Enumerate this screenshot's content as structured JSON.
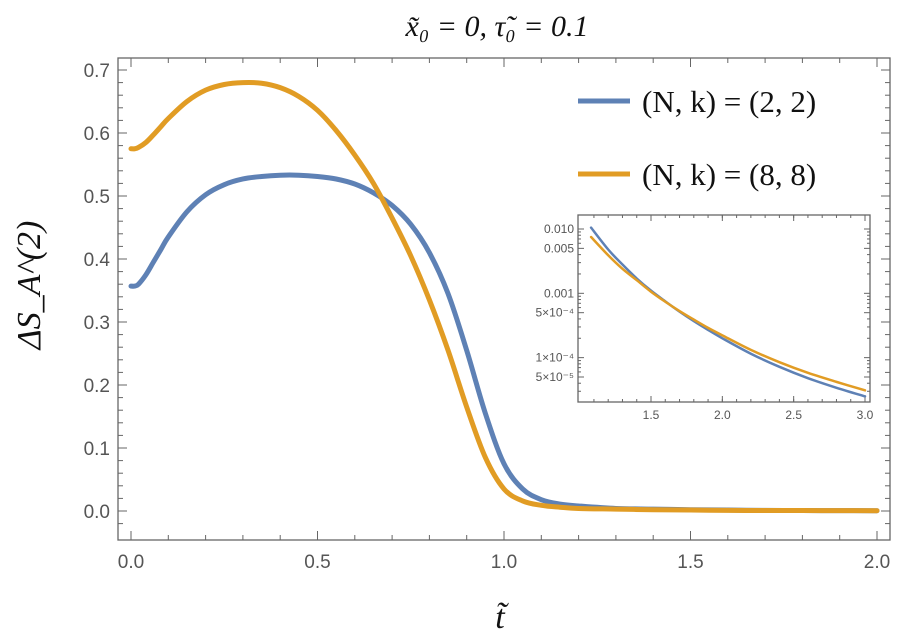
{
  "chart_data": [
    {
      "type": "line",
      "title": "x̃₀ = 0,  τ̃₀ = 0.1",
      "xlabel": "t̃",
      "ylabel": "ΔS_A^(2)",
      "xlim": [
        0,
        2.0
      ],
      "ylim": [
        -0.03,
        0.72
      ],
      "xticks": [
        "0.0",
        "0.5",
        "1.0",
        "1.5",
        "2.0"
      ],
      "yticks": [
        "0.0",
        "0.1",
        "0.2",
        "0.3",
        "0.4",
        "0.5",
        "0.6",
        "0.7"
      ],
      "legend_position": "top-right",
      "grid": false,
      "series": [
        {
          "name": "(N, k) = (2, 2)",
          "color": "#5e81b5",
          "x": [
            0,
            0.01,
            0.02,
            0.04,
            0.06,
            0.08,
            0.1,
            0.15,
            0.2,
            0.25,
            0.3,
            0.35,
            0.4,
            0.45,
            0.5,
            0.55,
            0.6,
            0.65,
            0.7,
            0.75,
            0.8,
            0.85,
            0.9,
            0.95,
            1.0,
            1.05,
            1.1,
            1.15,
            1.2,
            1.3,
            1.4,
            1.5,
            1.6,
            1.7,
            1.8,
            1.9,
            2.0
          ],
          "y": [
            0.357,
            0.357,
            0.36,
            0.375,
            0.395,
            0.415,
            0.435,
            0.475,
            0.502,
            0.518,
            0.527,
            0.531,
            0.533,
            0.533,
            0.531,
            0.527,
            0.519,
            0.505,
            0.485,
            0.455,
            0.41,
            0.345,
            0.255,
            0.155,
            0.075,
            0.035,
            0.018,
            0.011,
            0.008,
            0.004,
            0.003,
            0.002,
            0.0015,
            0.001,
            0.0008,
            0.0006,
            0.0005
          ]
        },
        {
          "name": "(N, k) = (8, 8)",
          "color": "#e19c24",
          "x": [
            0,
            0.01,
            0.02,
            0.04,
            0.06,
            0.08,
            0.1,
            0.15,
            0.2,
            0.25,
            0.3,
            0.35,
            0.4,
            0.45,
            0.5,
            0.55,
            0.6,
            0.65,
            0.7,
            0.75,
            0.8,
            0.85,
            0.9,
            0.95,
            1.0,
            1.05,
            1.1,
            1.15,
            1.2,
            1.3,
            1.4,
            1.5,
            1.6,
            1.7,
            1.8,
            1.9,
            2.0
          ],
          "y": [
            0.575,
            0.575,
            0.577,
            0.585,
            0.597,
            0.61,
            0.623,
            0.65,
            0.668,
            0.677,
            0.68,
            0.679,
            0.672,
            0.658,
            0.636,
            0.604,
            0.565,
            0.52,
            0.465,
            0.405,
            0.335,
            0.255,
            0.165,
            0.085,
            0.035,
            0.016,
            0.009,
            0.006,
            0.004,
            0.003,
            0.002,
            0.0015,
            0.001,
            0.0008,
            0.0007,
            0.0006,
            0.0005
          ]
        }
      ]
    },
    {
      "type": "line",
      "title": "",
      "xlabel": "",
      "ylabel": "",
      "xlim": [
        1.05,
        3.0
      ],
      "ylim": [
        2e-05,
        0.012
      ],
      "y_scale": "log",
      "xticks": [
        "1.5",
        "2.0",
        "2.5",
        "3.0"
      ],
      "yticks": [
        {
          "value": 0.01,
          "label": "0.010"
        },
        {
          "value": 0.005,
          "label": "0.005"
        },
        {
          "value": 0.001,
          "label": "0.001"
        },
        {
          "value": 0.0005,
          "label": "5×10⁻⁴"
        },
        {
          "value": 0.0001,
          "label": "1×10⁻⁴"
        },
        {
          "value": 5e-05,
          "label": "5×10⁻⁵"
        }
      ],
      "grid": false,
      "series": [
        {
          "color": "#5e81b5",
          "x": [
            1.08,
            1.2,
            1.3,
            1.4,
            1.5,
            1.6,
            1.7,
            1.8,
            1.9,
            2.0,
            2.2,
            2.4,
            2.6,
            2.8,
            3.0
          ],
          "y": [
            0.0105,
            0.0048,
            0.0028,
            0.0017,
            0.0011,
            0.00075,
            0.00052,
            0.00037,
            0.00027,
            0.0002,
            0.000115,
            7.2e-05,
            4.8e-05,
            3.4e-05,
            2.5e-05
          ]
        },
        {
          "color": "#e19c24",
          "x": [
            1.08,
            1.2,
            1.3,
            1.4,
            1.5,
            1.6,
            1.7,
            1.8,
            1.9,
            2.0,
            2.2,
            2.4,
            2.6,
            2.8,
            3.0
          ],
          "y": [
            0.0075,
            0.0039,
            0.0024,
            0.0016,
            0.00106,
            0.00074,
            0.00053,
            0.00039,
            0.00029,
            0.000222,
            0.000132,
            8.5e-05,
            5.8e-05,
            4.2e-05,
            3.1e-05
          ]
        }
      ]
    }
  ]
}
